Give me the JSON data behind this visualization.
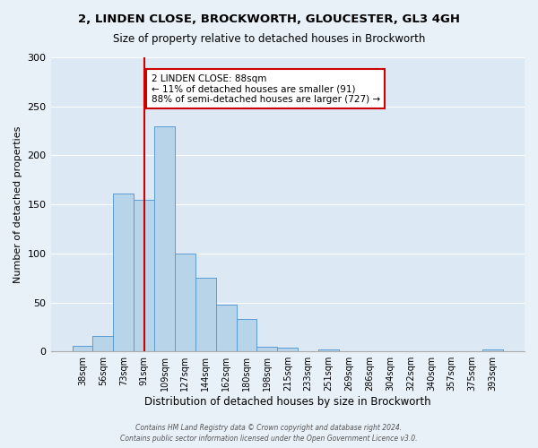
{
  "title1": "2, LINDEN CLOSE, BROCKWORTH, GLOUCESTER, GL3 4GH",
  "title2": "Size of property relative to detached houses in Brockworth",
  "xlabel": "Distribution of detached houses by size in Brockworth",
  "ylabel": "Number of detached properties",
  "bin_labels": [
    "38sqm",
    "56sqm",
    "73sqm",
    "91sqm",
    "109sqm",
    "127sqm",
    "144sqm",
    "162sqm",
    "180sqm",
    "198sqm",
    "215sqm",
    "233sqm",
    "251sqm",
    "269sqm",
    "286sqm",
    "304sqm",
    "322sqm",
    "340sqm",
    "357sqm",
    "375sqm",
    "393sqm"
  ],
  "bar_values": [
    6,
    16,
    161,
    155,
    230,
    100,
    75,
    48,
    33,
    5,
    4,
    0,
    2,
    0,
    0,
    0,
    0,
    0,
    0,
    0,
    2
  ],
  "bar_color": "#b8d4e8",
  "bar_edge_color": "#5b9bd5",
  "vline_x": 3,
  "vline_color": "#cc0000",
  "annotation_title": "2 LINDEN CLOSE: 88sqm",
  "annotation_line1": "← 11% of detached houses are smaller (91)",
  "annotation_line2": "88% of semi-detached houses are larger (727) →",
  "annotation_box_color": "#ffffff",
  "annotation_box_edge": "#cc0000",
  "ylim": [
    0,
    300
  ],
  "yticks": [
    0,
    50,
    100,
    150,
    200,
    250,
    300
  ],
  "footer1": "Contains HM Land Registry data © Crown copyright and database right 2024.",
  "footer2": "Contains public sector information licensed under the Open Government Licence v3.0.",
  "bg_color": "#e8f0f8",
  "plot_bg_color": "#dce8f4"
}
